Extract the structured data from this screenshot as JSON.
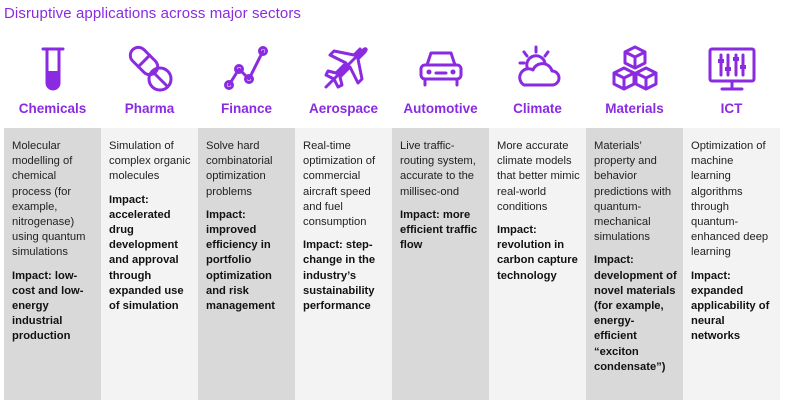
{
  "title": "Disruptive applications across major sectors",
  "accent_color": "#8a2be2",
  "columns": [
    {
      "sector": "Chemicals",
      "icon": "test-tube-icon",
      "description": "Molecular modelling of chemical process (for example, nitrogenase) using quantum simulations",
      "impact": "Impact: low-cost and low-energy industrial production"
    },
    {
      "sector": "Pharma",
      "icon": "pills-icon",
      "description": "Simulation of complex organic molecules",
      "impact": "Impact: accelerated drug development and approval through expanded use of simulation"
    },
    {
      "sector": "Finance",
      "icon": "line-graph-icon",
      "description": "Solve hard combinatorial optimization problems",
      "impact": "Impact: improved efficiency in portfolio optimization and risk management"
    },
    {
      "sector": "Aerospace",
      "icon": "airplane-icon",
      "description": "Real-time optimization of commercial aircraft speed and fuel consumption",
      "impact": "Impact: step-change in the industry’s sustainability performance"
    },
    {
      "sector": "Automotive",
      "icon": "car-icon",
      "description": "Live traffic-routing system, accurate to the millisec-ond",
      "impact": "Impact: more efficient traffic flow"
    },
    {
      "sector": "Climate",
      "icon": "sun-cloud-icon",
      "description": "More accurate climate models that better mimic real-world conditions",
      "impact": "Impact: revolution in carbon capture technology"
    },
    {
      "sector": "Materials",
      "icon": "cubes-icon",
      "description": "Materials’ property and behavior predictions with quantum-mechanical simulations",
      "impact": "Impact: development of novel materials (for example, energy-efficient “exciton condensate”)"
    },
    {
      "sector": "ICT",
      "icon": "monitor-sliders-icon",
      "description": "Optimization of machine learning algorithms through quantum-enhanced deep learning",
      "impact": "Impact: expanded applicability of neural networks"
    }
  ]
}
